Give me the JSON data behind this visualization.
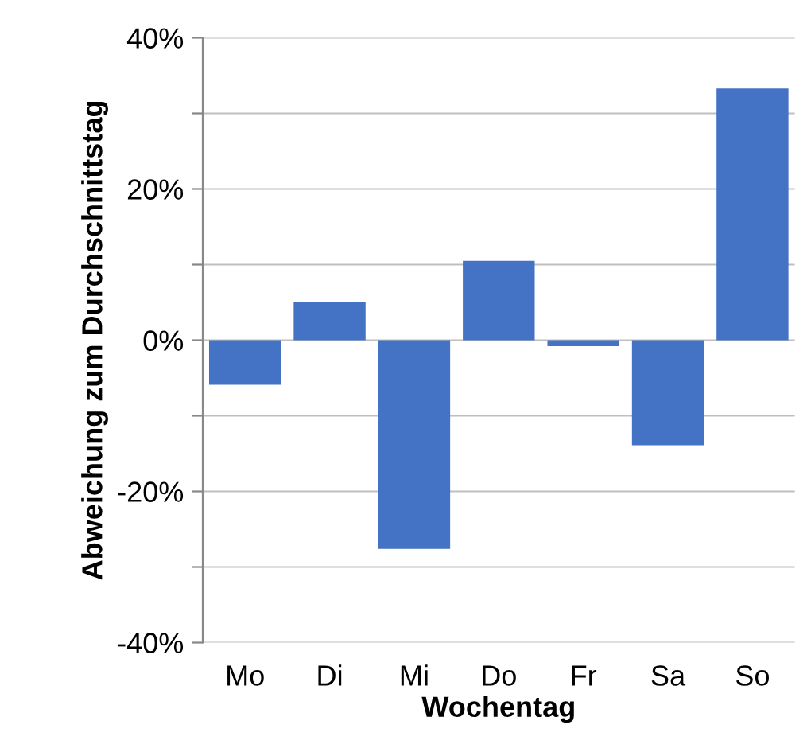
{
  "chart_data": {
    "type": "bar",
    "xlabel": "Wochentag",
    "ylabel": "Abweichung zum Durchschnittstag",
    "categories": [
      "Mo",
      "Di",
      "Mi",
      "Do",
      "Fr",
      "Sa",
      "So"
    ],
    "values": [
      -5.9,
      5.0,
      -27.6,
      10.5,
      -0.8,
      -13.9,
      33.3
    ],
    "color": "#4472c4",
    "ylim": [
      -40,
      40
    ],
    "yticks": [
      {
        "value": -40,
        "label": "-40%"
      },
      {
        "value": -30,
        "label": null
      },
      {
        "value": -20,
        "label": "-20%"
      },
      {
        "value": -10,
        "label": null
      },
      {
        "value": 0,
        "label": "0%"
      },
      {
        "value": 10,
        "label": null
      },
      {
        "value": 20,
        "label": "20%"
      },
      {
        "value": 30,
        "label": null
      },
      {
        "value": 40,
        "label": "40%"
      }
    ],
    "grid": "y"
  }
}
